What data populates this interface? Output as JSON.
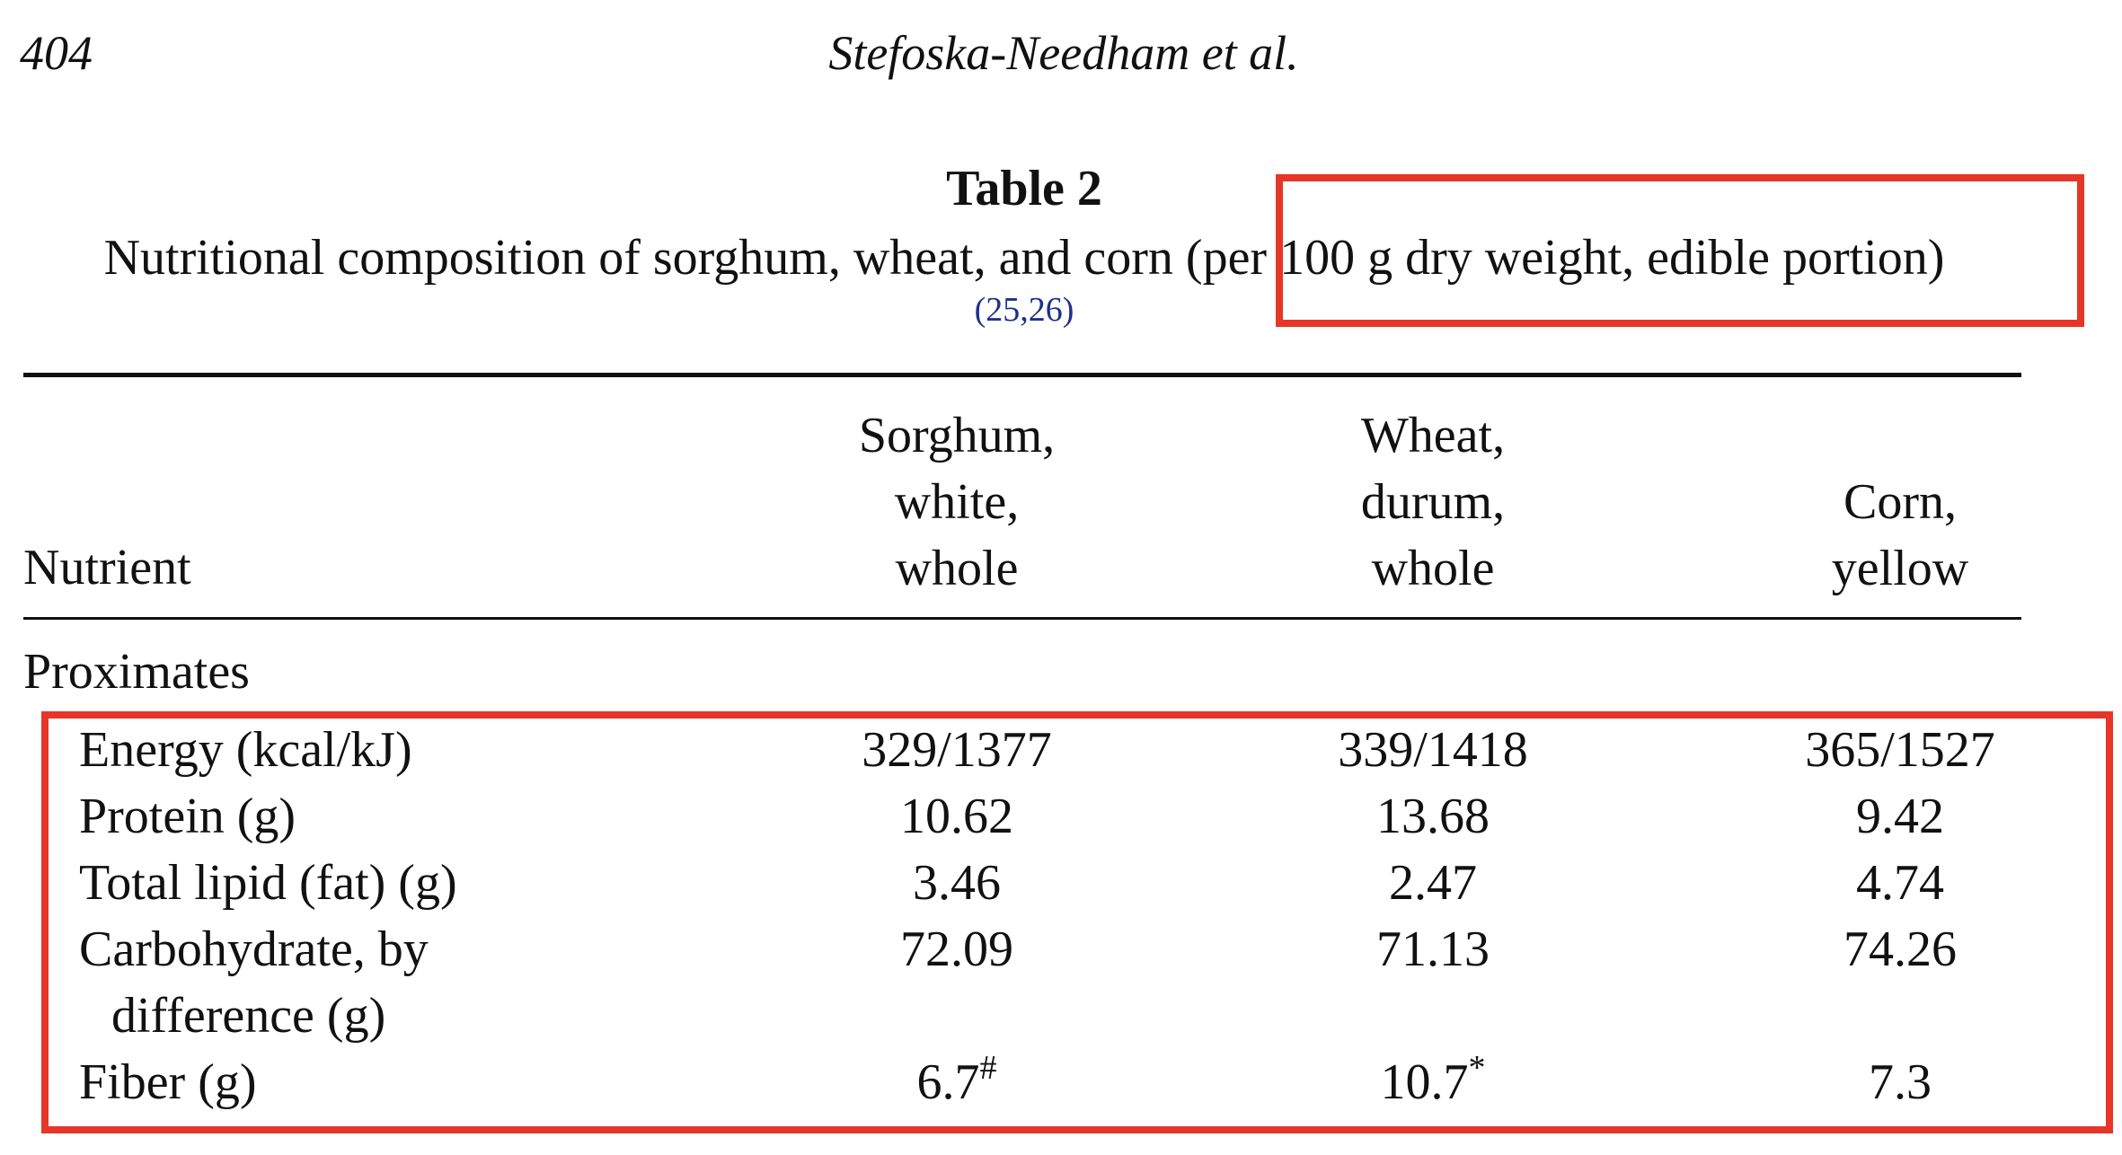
{
  "page": {
    "number": "404",
    "running_head": "Stefoska-Needham et al."
  },
  "table": {
    "title": "Table 2",
    "caption": "Nutritional composition of sorghum, wheat, and corn (per 100 g dry weight, edible portion)",
    "caption_refs": "(25,26)",
    "columns": {
      "nutrient": "Nutrient",
      "sorghum": [
        "Sorghum,",
        "white,",
        "whole"
      ],
      "wheat": [
        "Wheat,",
        "durum,",
        "whole"
      ],
      "corn": [
        "Corn,",
        "yellow"
      ]
    },
    "section": "Proximates",
    "rows": [
      {
        "nutrient": "Energy (kcal/kJ)",
        "sorghum": "329/1377",
        "wheat": "339/1418",
        "corn": "365/1527"
      },
      {
        "nutrient": "Protein (g)",
        "sorghum": "10.62",
        "wheat": "13.68",
        "corn": "9.42"
      },
      {
        "nutrient": "Total lipid (fat) (g)",
        "sorghum": "3.46",
        "wheat": "2.47",
        "corn": "4.74"
      },
      {
        "nutrient": "Carbohydrate, by",
        "nutrient_cont": "difference (g)",
        "sorghum": "72.09",
        "wheat": "71.13",
        "corn": "74.26"
      },
      {
        "nutrient": "Fiber (g)",
        "sorghum": "6.7",
        "sorghum_mark": "#",
        "wheat": "10.7",
        "wheat_mark": "*",
        "corn": "7.3"
      }
    ]
  },
  "annotations": {
    "highlight_color": "#e63629"
  }
}
